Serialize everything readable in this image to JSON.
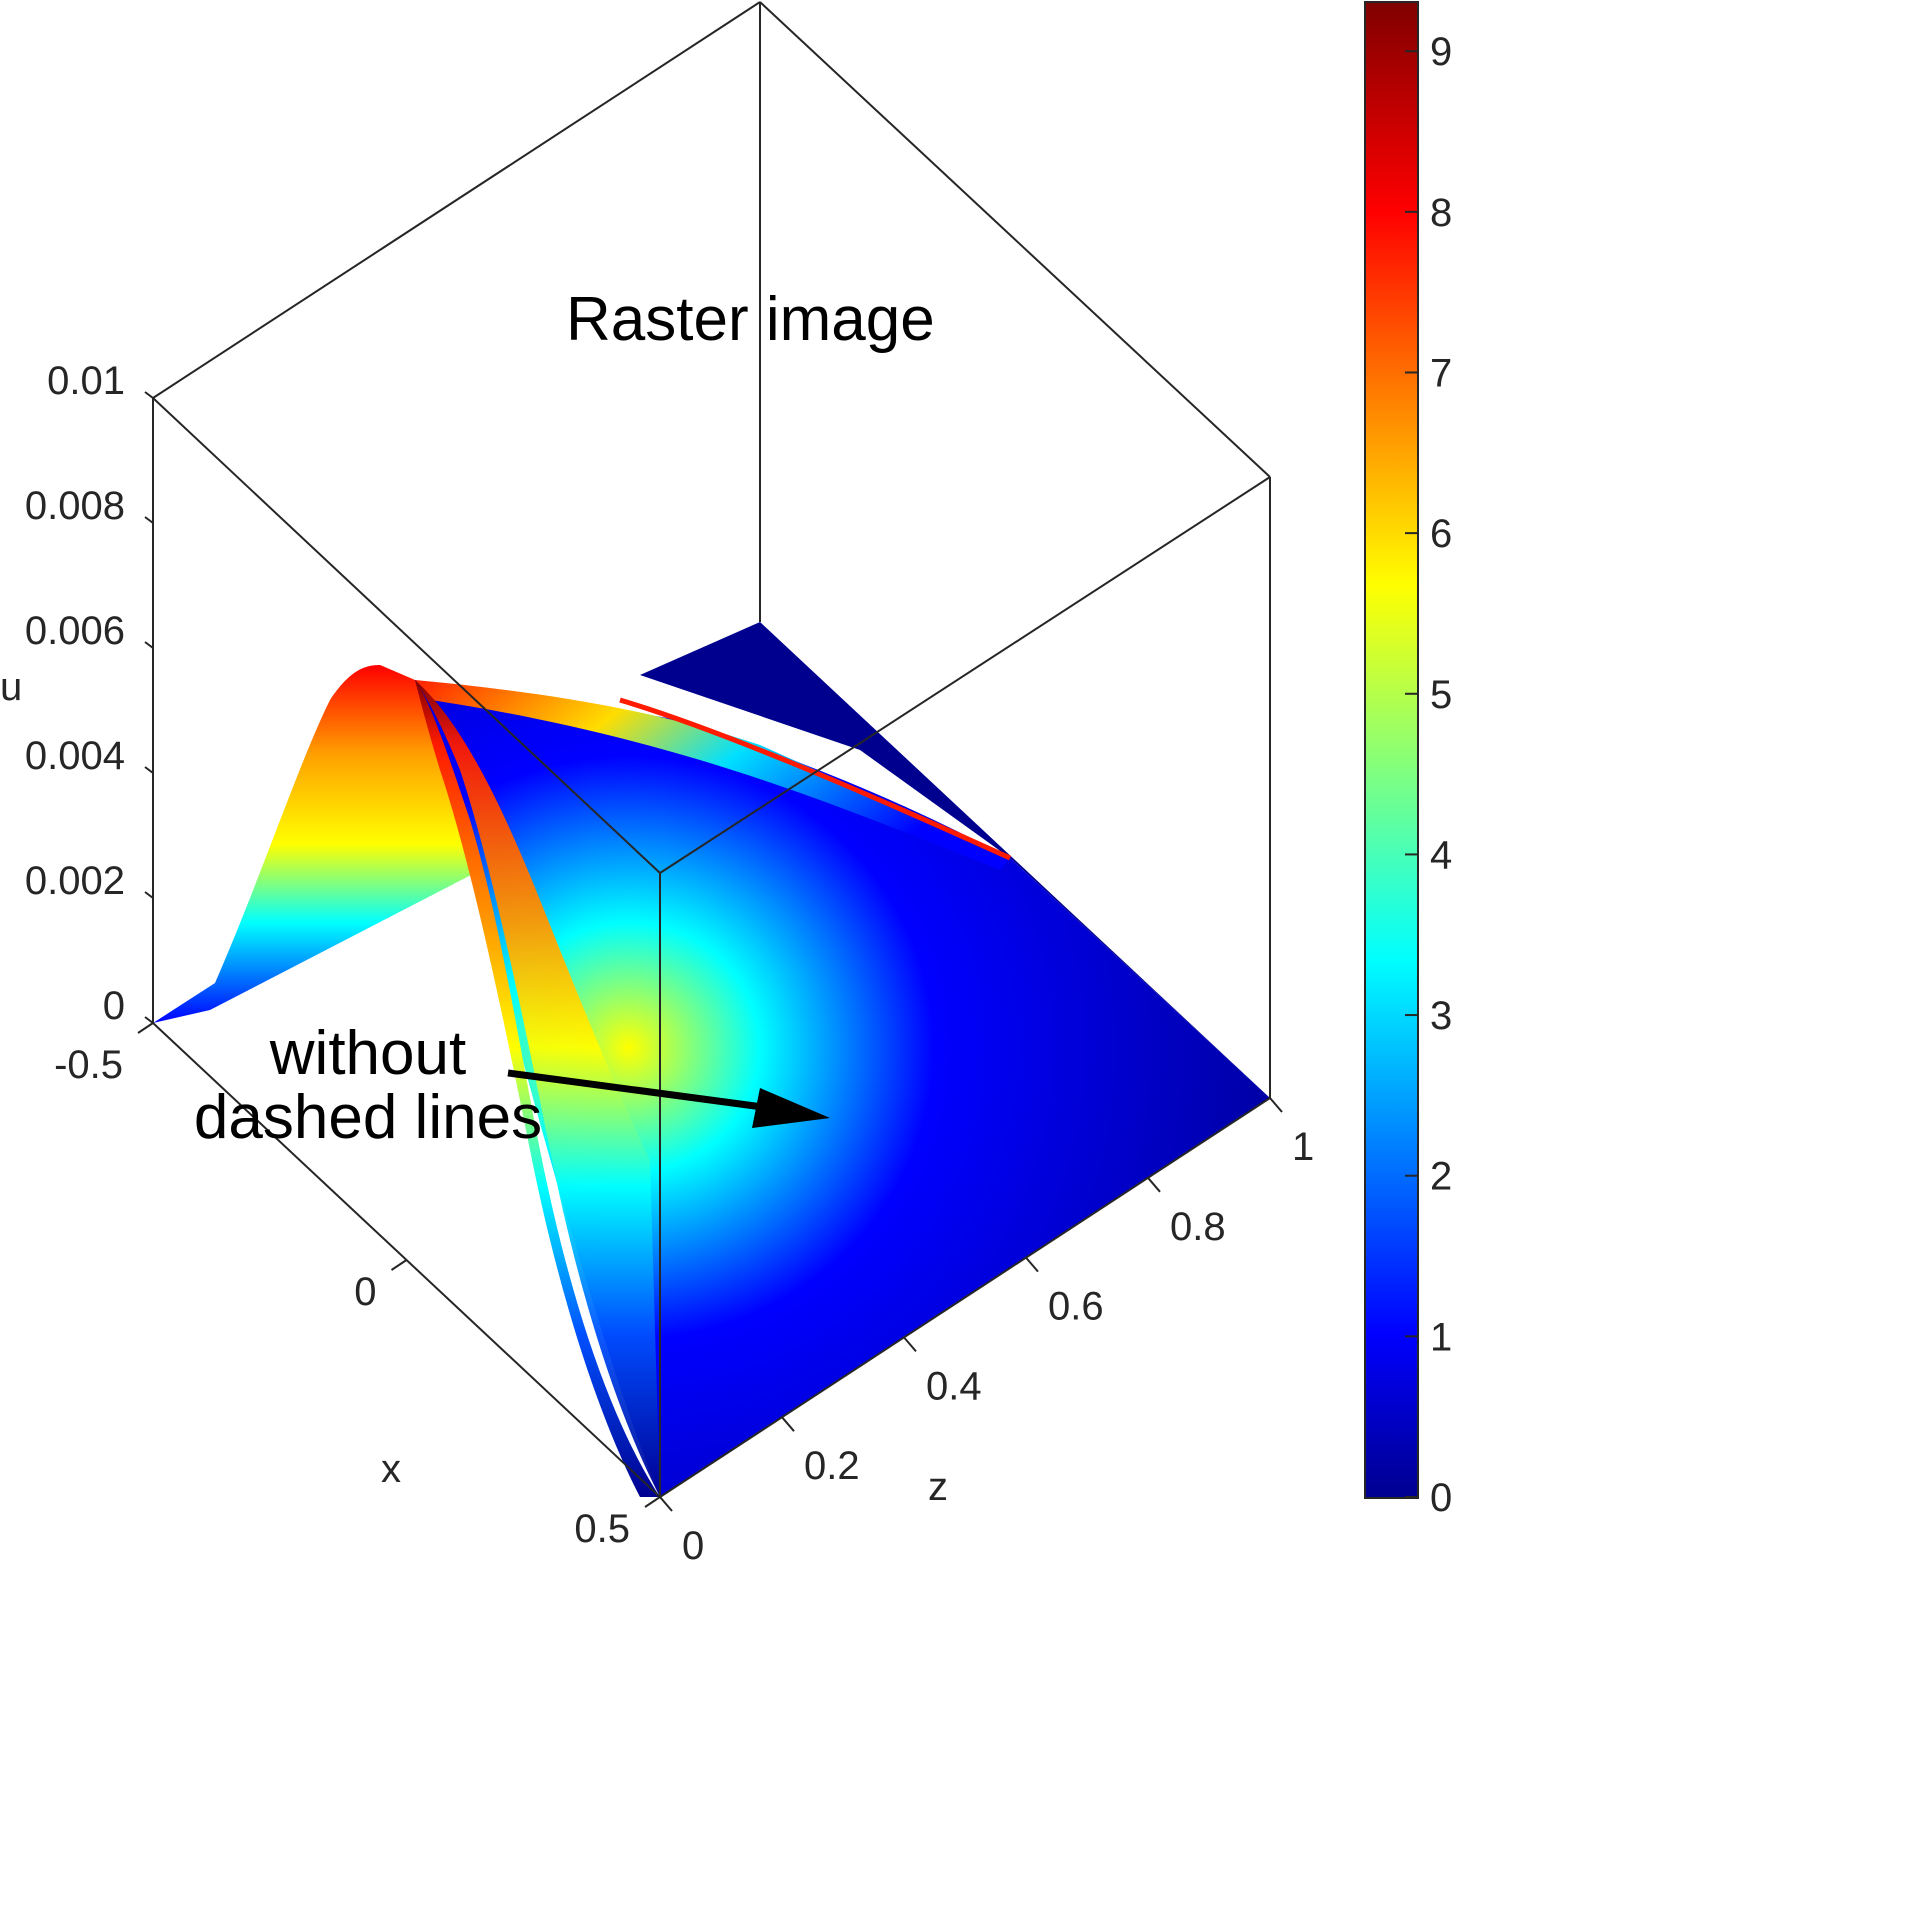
{
  "chart_data": {
    "type": "surface",
    "colormap": "jet",
    "xlabel": "x",
    "ylabel": "z",
    "zlabel": "u",
    "xlim": [
      -0.5,
      0.5
    ],
    "ylim": [
      0,
      1
    ],
    "zlim": [
      0,
      0.01
    ],
    "clim": [
      0,
      9.3
    ],
    "grid": false,
    "x_ticks": [
      "-0.5",
      "0",
      "0.5"
    ],
    "y_ticks": [
      "0",
      "0.2",
      "0.4",
      "0.6",
      "0.8",
      "1"
    ],
    "z_ticks": [
      "0",
      "0.002",
      "0.004",
      "0.006",
      "0.008",
      "0.01"
    ],
    "colorbar_ticks": [
      "0",
      "1",
      "2",
      "3",
      "4",
      "5",
      "6",
      "7",
      "8",
      "9"
    ],
    "colorbar_values": [
      0,
      1,
      2,
      3,
      4,
      5,
      6,
      7,
      8,
      9
    ],
    "surface_peak": {
      "x": -0.15,
      "z": 0.0055
    },
    "annotations": {
      "title_note": "Raster image",
      "arrow_note_line1": "without",
      "arrow_note_line2": "dashed lines"
    }
  }
}
